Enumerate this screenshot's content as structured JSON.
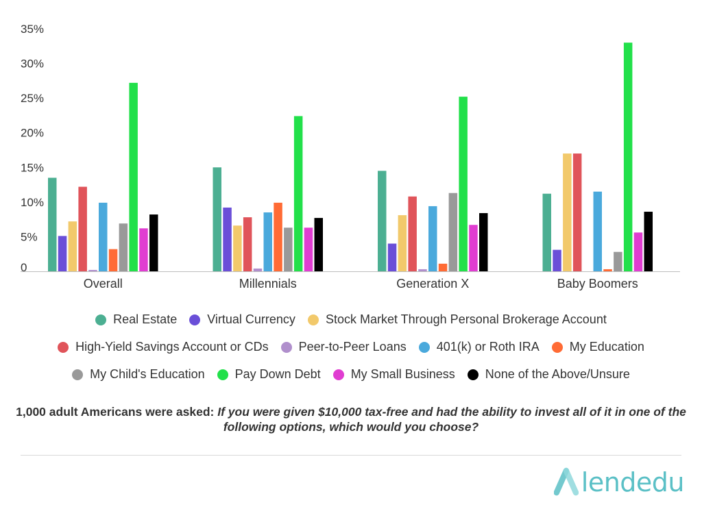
{
  "chart_data": {
    "type": "bar",
    "categories": [
      "Overall",
      "Millennials",
      "Generation X",
      "Baby Boomers"
    ],
    "ylim": [
      0,
      35
    ],
    "yticks": [
      "0",
      "5%",
      "10%",
      "15%",
      "20%",
      "25%",
      "30%",
      "35%"
    ],
    "series": [
      {
        "name": "Real Estate",
        "color": "#4caf92",
        "values": [
          13.5,
          15.0,
          14.5,
          11.2
        ]
      },
      {
        "name": "Virtual Currency",
        "color": "#6a4fd8",
        "values": [
          5.1,
          9.2,
          4.0,
          3.1
        ]
      },
      {
        "name": "Stock Market Through Personal Brokerage Account",
        "color": "#f2c96b",
        "values": [
          7.2,
          6.6,
          8.1,
          17.0
        ]
      },
      {
        "name": "High-Yield Savings Account or CDs",
        "color": "#e0545a",
        "values": [
          12.2,
          7.8,
          10.8,
          17.0
        ]
      },
      {
        "name": "Peer-to-Peer Loans",
        "color": "#b08fcc",
        "values": [
          0.2,
          0.4,
          0.3,
          0.0
        ]
      },
      {
        "name": "401(k) or Roth IRA",
        "color": "#4aa9dc",
        "values": [
          9.9,
          8.5,
          9.4,
          11.5
        ]
      },
      {
        "name": "My Education",
        "color": "#ff6b35",
        "values": [
          3.2,
          9.9,
          1.1,
          0.3
        ]
      },
      {
        "name": "My Child's Education",
        "color": "#999999",
        "values": [
          6.9,
          6.3,
          11.3,
          2.8
        ]
      },
      {
        "name": "Pay Down Debt",
        "color": "#22e04a",
        "values": [
          27.2,
          22.4,
          25.2,
          33.0
        ]
      },
      {
        "name": "My Small Business",
        "color": "#e03dd1",
        "values": [
          6.2,
          6.3,
          6.7,
          5.6
        ]
      },
      {
        "name": "None of the Above/Unsure",
        "color": "#000000",
        "values": [
          8.2,
          7.7,
          8.4,
          8.6
        ]
      }
    ]
  },
  "legend_rows": [
    [
      0,
      1,
      2
    ],
    [
      3,
      4,
      5,
      6
    ],
    [
      7,
      8,
      9,
      10
    ]
  ],
  "caption": {
    "lead": "1,000 adult Americans were asked:",
    "question": "If you were given $10,000 tax-free and had the ability to invest all of it in one of the following options, which would you choose?"
  },
  "brand": {
    "name": "lendedu",
    "color": "#5bc0c6"
  }
}
